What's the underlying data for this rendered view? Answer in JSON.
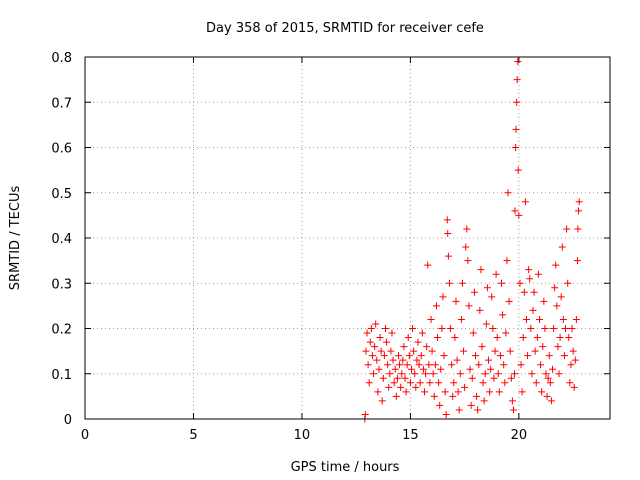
{
  "chart_data": {
    "type": "scatter",
    "title": "Day 358 of 2015, SRMTID for receiver cefe",
    "xlabel": "GPS time / hours",
    "ylabel": "SRMTID / TECUs",
    "xlim": [
      0,
      24.2
    ],
    "ylim": [
      0,
      0.8
    ],
    "x_ticks": [
      0,
      5,
      10,
      15,
      20
    ],
    "y_ticks": [
      0,
      0.1,
      0.2,
      0.3,
      0.4,
      0.5,
      0.6,
      0.7,
      0.8
    ],
    "x_tick_labels": [
      "0",
      "5",
      "10",
      "15",
      "20"
    ],
    "y_tick_labels": [
      "0",
      "0.1",
      "0.2",
      "0.3",
      "0.4",
      "0.5",
      "0.6",
      "0.7",
      "0.8"
    ],
    "grid": true,
    "marker": "+",
    "color": "#ff0000",
    "series": [
      {
        "name": "SRMTID",
        "points": [
          [
            12.9,
            0.0
          ],
          [
            12.92,
            0.01
          ],
          [
            12.95,
            0.15
          ],
          [
            13.0,
            0.19
          ],
          [
            13.05,
            0.12
          ],
          [
            13.1,
            0.08
          ],
          [
            13.15,
            0.17
          ],
          [
            13.2,
            0.2
          ],
          [
            13.25,
            0.14
          ],
          [
            13.3,
            0.1
          ],
          [
            13.35,
            0.16
          ],
          [
            13.4,
            0.21
          ],
          [
            13.45,
            0.13
          ],
          [
            13.5,
            0.06
          ],
          [
            13.55,
            0.11
          ],
          [
            13.6,
            0.18
          ],
          [
            13.65,
            0.15
          ],
          [
            13.7,
            0.04
          ],
          [
            13.75,
            0.09
          ],
          [
            13.8,
            0.14
          ],
          [
            13.85,
            0.2
          ],
          [
            13.9,
            0.17
          ],
          [
            13.95,
            0.12
          ],
          [
            14.0,
            0.07
          ],
          [
            14.05,
            0.1
          ],
          [
            14.1,
            0.15
          ],
          [
            14.15,
            0.19
          ],
          [
            14.2,
            0.13
          ],
          [
            14.25,
            0.08
          ],
          [
            14.3,
            0.11
          ],
          [
            14.35,
            0.05
          ],
          [
            14.4,
            0.09
          ],
          [
            14.45,
            0.14
          ],
          [
            14.5,
            0.12
          ],
          [
            14.55,
            0.07
          ],
          [
            14.6,
            0.1
          ],
          [
            14.65,
            0.13
          ],
          [
            14.7,
            0.16
          ],
          [
            14.75,
            0.09
          ],
          [
            14.8,
            0.06
          ],
          [
            14.85,
            0.12
          ],
          [
            14.9,
            0.18
          ],
          [
            14.95,
            0.14
          ],
          [
            15.0,
            0.08
          ],
          [
            15.05,
            0.11
          ],
          [
            15.1,
            0.2
          ],
          [
            15.15,
            0.15
          ],
          [
            15.2,
            0.1
          ],
          [
            15.25,
            0.07
          ],
          [
            15.3,
            0.13
          ],
          [
            15.35,
            0.17
          ],
          [
            15.4,
            0.12
          ],
          [
            15.45,
            0.08
          ],
          [
            15.5,
            0.14
          ],
          [
            15.55,
            0.19
          ],
          [
            15.6,
            0.11
          ],
          [
            15.65,
            0.06
          ],
          [
            15.7,
            0.1
          ],
          [
            15.75,
            0.16
          ],
          [
            15.8,
            0.34
          ],
          [
            15.85,
            0.12
          ],
          [
            15.9,
            0.08
          ],
          [
            15.95,
            0.22
          ],
          [
            16.0,
            0.15
          ],
          [
            16.05,
            0.1
          ],
          [
            16.1,
            0.05
          ],
          [
            16.15,
            0.12
          ],
          [
            16.2,
            0.25
          ],
          [
            16.25,
            0.18
          ],
          [
            16.3,
            0.08
          ],
          [
            16.35,
            0.03
          ],
          [
            16.4,
            0.11
          ],
          [
            16.45,
            0.2
          ],
          [
            16.5,
            0.27
          ],
          [
            16.55,
            0.14
          ],
          [
            16.6,
            0.06
          ],
          [
            16.65,
            0.01
          ],
          [
            16.7,
            0.44
          ],
          [
            16.72,
            0.41
          ],
          [
            16.75,
            0.36
          ],
          [
            16.8,
            0.3
          ],
          [
            16.85,
            0.2
          ],
          [
            16.9,
            0.12
          ],
          [
            16.95,
            0.05
          ],
          [
            17.0,
            0.08
          ],
          [
            17.05,
            0.18
          ],
          [
            17.1,
            0.26
          ],
          [
            17.15,
            0.13
          ],
          [
            17.2,
            0.06
          ],
          [
            17.25,
            0.02
          ],
          [
            17.3,
            0.1
          ],
          [
            17.35,
            0.22
          ],
          [
            17.4,
            0.3
          ],
          [
            17.45,
            0.15
          ],
          [
            17.5,
            0.07
          ],
          [
            17.55,
            0.38
          ],
          [
            17.6,
            0.42
          ],
          [
            17.65,
            0.35
          ],
          [
            17.7,
            0.25
          ],
          [
            17.75,
            0.11
          ],
          [
            17.8,
            0.03
          ],
          [
            17.85,
            0.09
          ],
          [
            17.9,
            0.19
          ],
          [
            17.95,
            0.28
          ],
          [
            18.0,
            0.14
          ],
          [
            18.05,
            0.05
          ],
          [
            18.1,
            0.02
          ],
          [
            18.15,
            0.12
          ],
          [
            18.2,
            0.24
          ],
          [
            18.25,
            0.33
          ],
          [
            18.3,
            0.16
          ],
          [
            18.35,
            0.08
          ],
          [
            18.4,
            0.04
          ],
          [
            18.45,
            0.1
          ],
          [
            18.5,
            0.21
          ],
          [
            18.55,
            0.29
          ],
          [
            18.6,
            0.13
          ],
          [
            18.65,
            0.06
          ],
          [
            18.7,
            0.11
          ],
          [
            18.75,
            0.27
          ],
          [
            18.8,
            0.2
          ],
          [
            18.85,
            0.09
          ],
          [
            18.9,
            0.15
          ],
          [
            18.95,
            0.32
          ],
          [
            19.0,
            0.18
          ],
          [
            19.05,
            0.1
          ],
          [
            19.1,
            0.06
          ],
          [
            19.15,
            0.14
          ],
          [
            19.2,
            0.3
          ],
          [
            19.25,
            0.23
          ],
          [
            19.3,
            0.12
          ],
          [
            19.35,
            0.08
          ],
          [
            19.4,
            0.19
          ],
          [
            19.45,
            0.35
          ],
          [
            19.5,
            0.5
          ],
          [
            19.55,
            0.26
          ],
          [
            19.6,
            0.15
          ],
          [
            19.65,
            0.09
          ],
          [
            19.7,
            0.04
          ],
          [
            19.75,
            0.02
          ],
          [
            19.8,
            0.1
          ],
          [
            19.82,
            0.46
          ],
          [
            19.85,
            0.6
          ],
          [
            19.87,
            0.64
          ],
          [
            19.9,
            0.7
          ],
          [
            19.92,
            0.75
          ],
          [
            19.95,
            0.79
          ],
          [
            19.97,
            0.55
          ],
          [
            20.0,
            0.45
          ],
          [
            20.05,
            0.3
          ],
          [
            20.1,
            0.12
          ],
          [
            20.15,
            0.06
          ],
          [
            20.2,
            0.18
          ],
          [
            20.25,
            0.28
          ],
          [
            20.3,
            0.48
          ],
          [
            20.35,
            0.22
          ],
          [
            20.4,
            0.14
          ],
          [
            20.45,
            0.33
          ],
          [
            20.5,
            0.31
          ],
          [
            20.55,
            0.2
          ],
          [
            20.6,
            0.1
          ],
          [
            20.65,
            0.24
          ],
          [
            20.7,
            0.28
          ],
          [
            20.75,
            0.15
          ],
          [
            20.8,
            0.08
          ],
          [
            20.85,
            0.18
          ],
          [
            20.9,
            0.32
          ],
          [
            20.95,
            0.22
          ],
          [
            21.0,
            0.12
          ],
          [
            21.05,
            0.06
          ],
          [
            21.1,
            0.16
          ],
          [
            21.15,
            0.26
          ],
          [
            21.2,
            0.2
          ],
          [
            21.25,
            0.1
          ],
          [
            21.3,
            0.05
          ],
          [
            21.35,
            0.09
          ],
          [
            21.4,
            0.14
          ],
          [
            21.45,
            0.08
          ],
          [
            21.5,
            0.04
          ],
          [
            21.55,
            0.11
          ],
          [
            21.6,
            0.2
          ],
          [
            21.65,
            0.29
          ],
          [
            21.7,
            0.34
          ],
          [
            21.75,
            0.25
          ],
          [
            21.8,
            0.16
          ],
          [
            21.85,
            0.1
          ],
          [
            21.9,
            0.18
          ],
          [
            21.95,
            0.27
          ],
          [
            22.0,
            0.38
          ],
          [
            22.05,
            0.22
          ],
          [
            22.1,
            0.14
          ],
          [
            22.15,
            0.2
          ],
          [
            22.2,
            0.42
          ],
          [
            22.25,
            0.3
          ],
          [
            22.3,
            0.18
          ],
          [
            22.35,
            0.08
          ],
          [
            22.4,
            0.12
          ],
          [
            22.45,
            0.2
          ],
          [
            22.5,
            0.15
          ],
          [
            22.55,
            0.07
          ],
          [
            22.6,
            0.13
          ],
          [
            22.65,
            0.22
          ],
          [
            22.7,
            0.35
          ],
          [
            22.72,
            0.42
          ],
          [
            22.75,
            0.46
          ],
          [
            22.78,
            0.48
          ]
        ]
      }
    ]
  }
}
